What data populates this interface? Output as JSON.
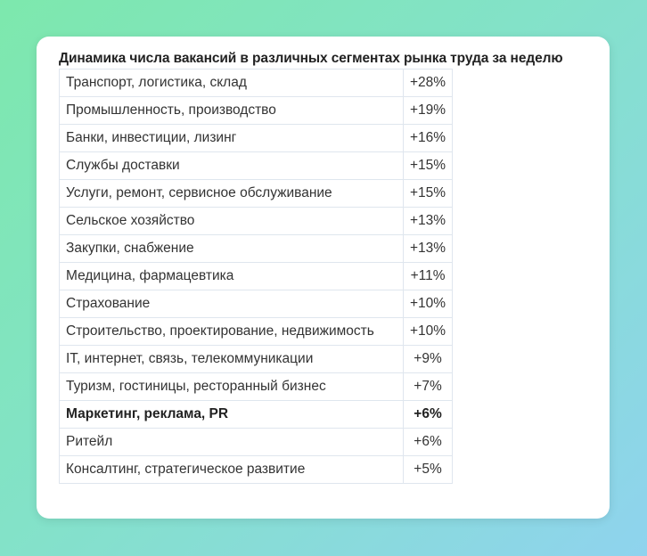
{
  "chart_data": {
    "type": "table",
    "title": "Динамика числа вакансий в различных сегментах рынка труда за неделю",
    "rows": [
      {
        "segment": "Транспорт, логистика, склад",
        "change": "+28%",
        "value": 28
      },
      {
        "segment": "Промышленность, производство",
        "change": "+19%",
        "value": 19
      },
      {
        "segment": "Банки, инвестиции, лизинг",
        "change": "+16%",
        "value": 16
      },
      {
        "segment": "Службы доставки",
        "change": "+15%",
        "value": 15
      },
      {
        "segment": "Услуги, ремонт, сервисное обслуживание",
        "change": "+15%",
        "value": 15
      },
      {
        "segment": "Сельское хозяйство",
        "change": "+13%",
        "value": 13
      },
      {
        "segment": "Закупки, снабжение",
        "change": "+13%",
        "value": 13
      },
      {
        "segment": "Медицина, фармацевтика",
        "change": "+11%",
        "value": 11
      },
      {
        "segment": "Страхование",
        "change": "+10%",
        "value": 10
      },
      {
        "segment": "Строительство, проектирование, недвижимость",
        "change": "+10%",
        "value": 10
      },
      {
        "segment": "IT, интернет, связь, телекоммуникации",
        "change": "+9%",
        "value": 9
      },
      {
        "segment": "Туризм, гостиницы, ресторанный бизнес",
        "change": "+7%",
        "value": 7
      },
      {
        "segment": "Маркетинг, реклама, PR",
        "change": "+6%",
        "value": 6,
        "highlighted": true
      },
      {
        "segment": "Ритейл",
        "change": "+6%",
        "value": 6
      },
      {
        "segment": "Консалтинг, стратегическое развитие",
        "change": "+5%",
        "value": 5
      }
    ]
  }
}
